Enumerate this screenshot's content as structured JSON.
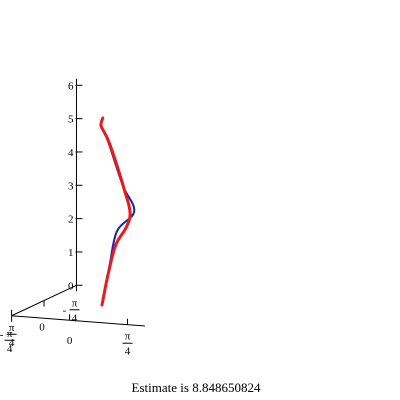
{
  "chart_data": {
    "type": "line",
    "dimensions": 3,
    "caption": "Estimate is 8.848650824",
    "axes": {
      "z": {
        "range": [
          0,
          6
        ],
        "ticks": [
          {
            "value": 0,
            "label": "0"
          },
          {
            "value": 1,
            "label": "1"
          },
          {
            "value": 2,
            "label": "2"
          },
          {
            "value": 3,
            "label": "3"
          },
          {
            "value": 4,
            "label": "4"
          },
          {
            "value": 5,
            "label": "5"
          },
          {
            "value": 6,
            "label": "6"
          }
        ]
      },
      "y": {
        "range": [
          -0.785398,
          0.785398
        ],
        "ticks": [
          {
            "value": 0.785398,
            "sign": "",
            "num": "π",
            "den": "4"
          },
          {
            "value": 0,
            "sign": "",
            "num": "0",
            "den": ""
          },
          {
            "value": -0.785398,
            "sign": "-",
            "num": "π",
            "den": "4"
          }
        ]
      },
      "x": {
        "range": [
          -0.785398,
          0.785398
        ],
        "ticks": [
          {
            "value": -0.785398,
            "sign": "-",
            "num": "π",
            "den": "4"
          },
          {
            "value": 0,
            "sign": "",
            "num": "0",
            "den": ""
          },
          {
            "value": 0.785398,
            "sign": "",
            "num": "π",
            "den": "4"
          }
        ]
      }
    },
    "series": [
      {
        "color": "#1f1faa",
        "points": [
          [
            0,
            0,
            0
          ],
          [
            0,
            -0.18,
            1.05
          ],
          [
            0,
            -0.36,
            2.0
          ],
          [
            0,
            -0.78,
            2.36
          ],
          [
            0,
            -0.5,
            3.3
          ],
          [
            0,
            -0.14,
            4.85
          ],
          [
            0,
            0.02,
            5.38
          ],
          [
            0,
            -0.02,
            5.6
          ]
        ]
      },
      {
        "color": "#e8191f",
        "points": [
          [
            0,
            0,
            0
          ],
          [
            0,
            -0.15,
            0.85
          ],
          [
            0,
            -0.33,
            1.6
          ],
          [
            0,
            -0.58,
            1.98
          ],
          [
            0,
            -0.68,
            2.35
          ],
          [
            0,
            -0.55,
            3.1
          ],
          [
            0,
            -0.18,
            4.75
          ],
          [
            0,
            0.02,
            5.38
          ],
          [
            0,
            -0.02,
            5.6
          ]
        ]
      }
    ]
  }
}
